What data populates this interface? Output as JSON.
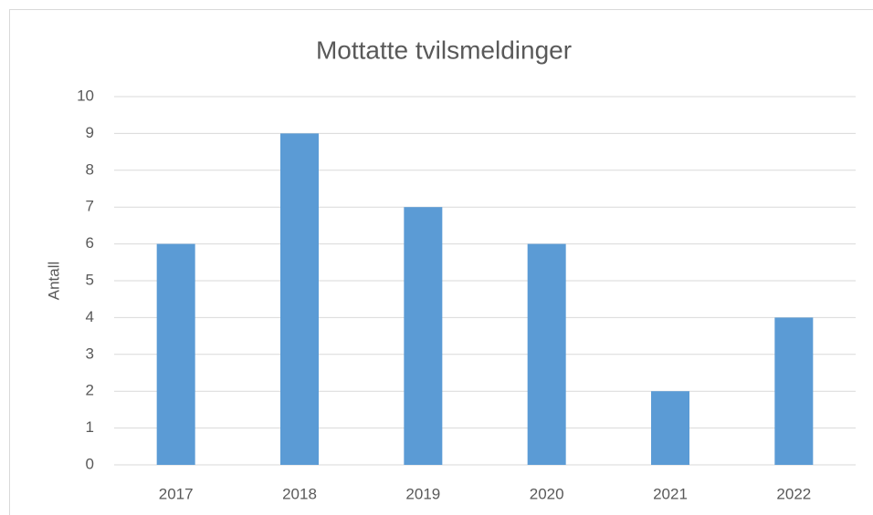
{
  "chart_data": {
    "type": "bar",
    "title": "Mottatte tvilsmeldinger",
    "y_label": "Antall",
    "categories": [
      "2017",
      "2018",
      "2019",
      "2020",
      "2021",
      "2022"
    ],
    "values": [
      6,
      9,
      7,
      6,
      2,
      4
    ],
    "color": "#5b9bd5",
    "ylim": [
      0,
      10
    ],
    "yticks": [
      0,
      1,
      2,
      3,
      4,
      5,
      6,
      7,
      8,
      9,
      10
    ],
    "grid": true
  }
}
